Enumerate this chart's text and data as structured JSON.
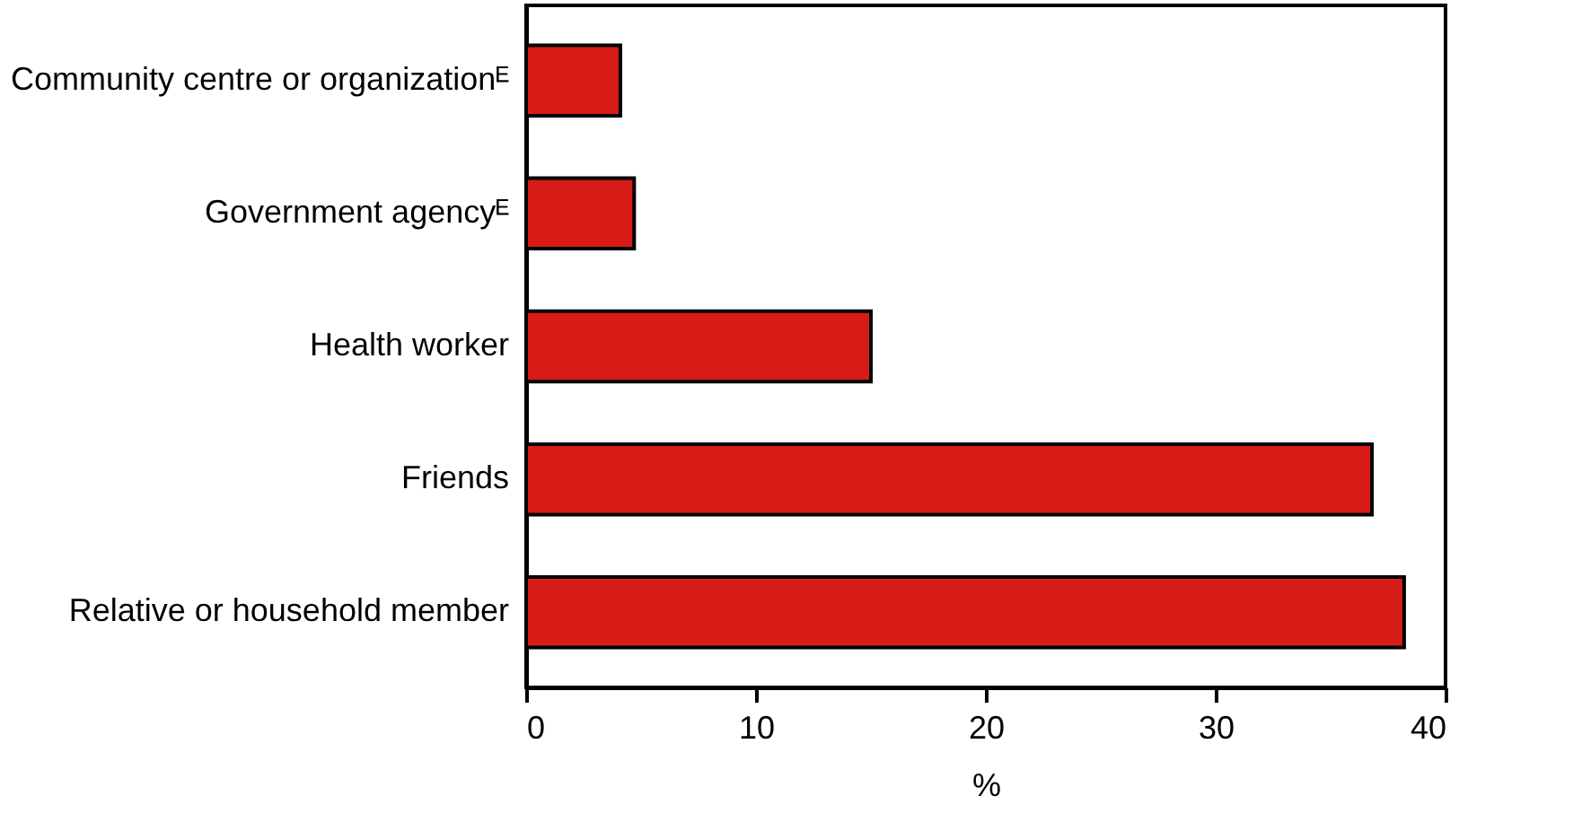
{
  "chart_data": {
    "type": "bar",
    "orientation": "horizontal",
    "xlabel": "%",
    "categories": [
      "Community centre or organizationᴱ",
      "Government agencyᴱ",
      "Health worker",
      "Friends",
      "Relative or household member"
    ],
    "values": [
      4.1,
      4.7,
      15.0,
      36.8,
      38.2
    ],
    "color": "#d71c17",
    "xlim": [
      0,
      40
    ],
    "xticks": [
      0,
      10,
      20,
      30,
      40
    ],
    "grid": false
  }
}
